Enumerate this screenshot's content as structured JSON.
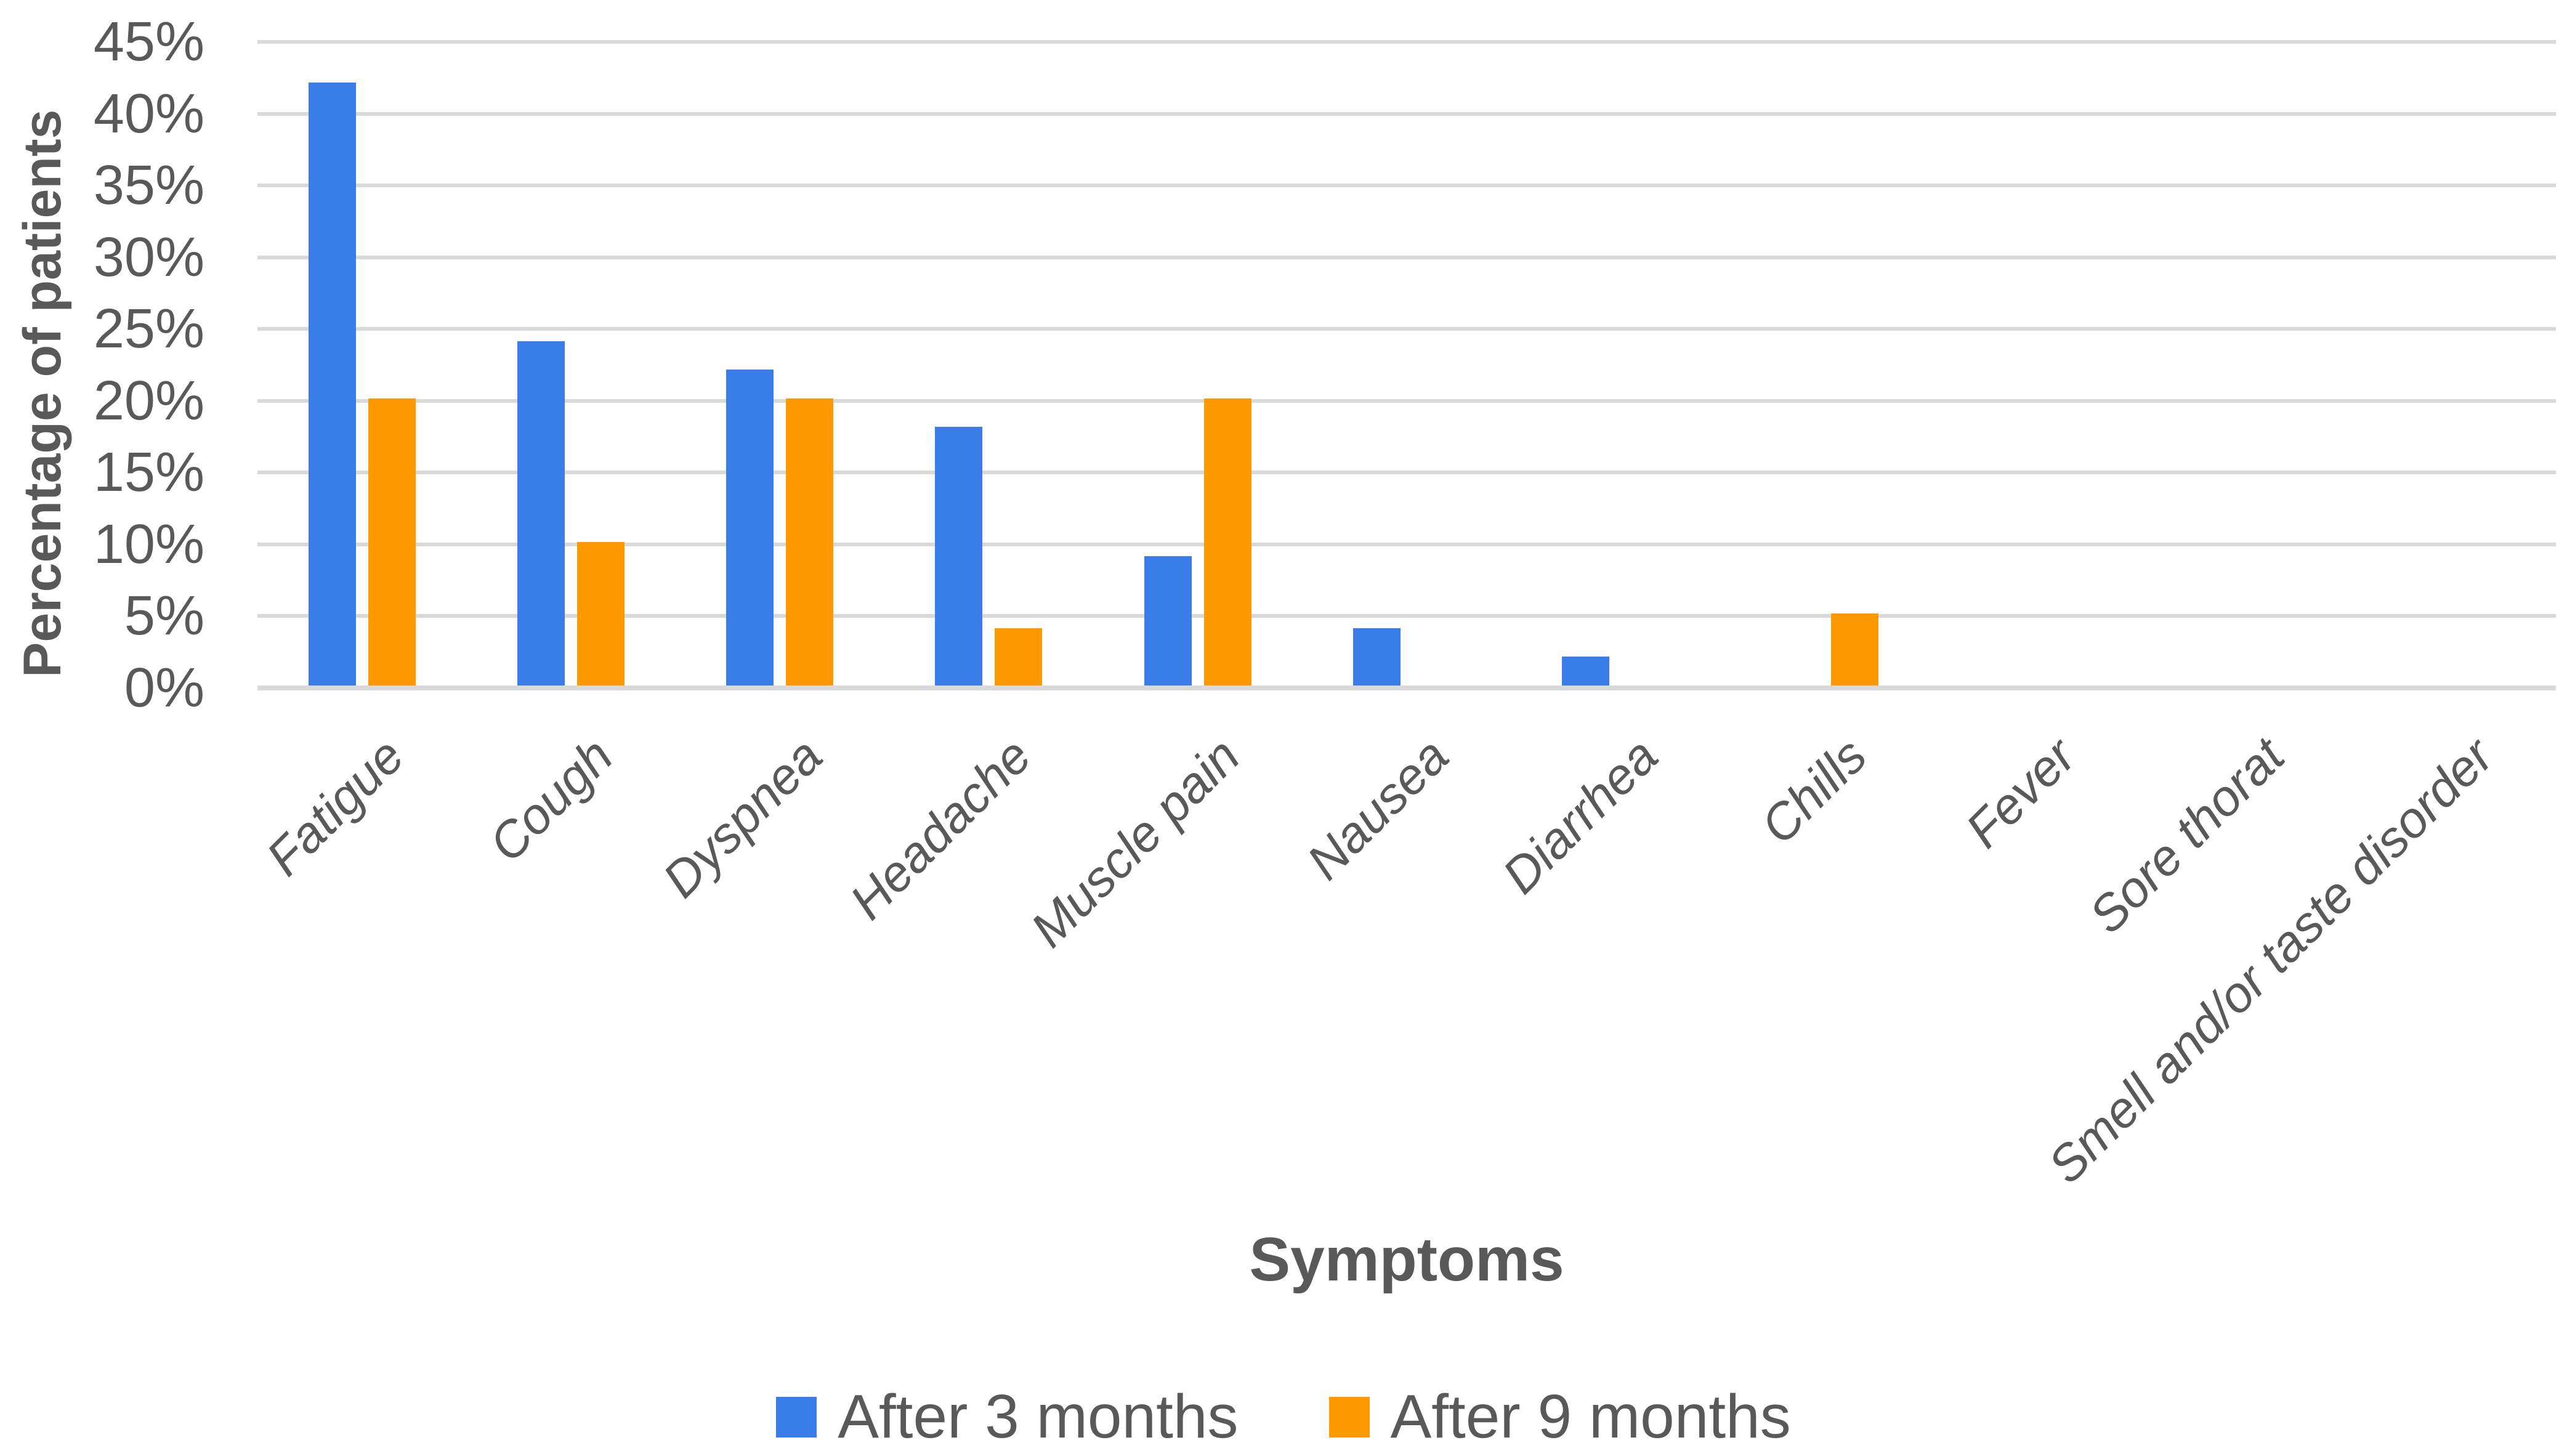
{
  "chart_data": {
    "type": "bar",
    "title": "",
    "xlabel": "Symptoms",
    "ylabel": "Percentage of patients",
    "categories": [
      "Fatigue",
      "Cough",
      "Dyspnea",
      "Headache",
      "Muscle pain",
      "Nausea",
      "Diarrhea",
      "Chills",
      "Fever",
      "Sore thorat",
      "Smell and/or taste disorder"
    ],
    "series": [
      {
        "name": "After 3 months",
        "color": "#3A7DE9",
        "values": [
          42,
          24,
          22,
          18,
          9,
          4,
          2,
          0,
          0,
          0,
          0
        ]
      },
      {
        "name": "After 9 months",
        "color": "#FF9900",
        "values": [
          20,
          10,
          20,
          4,
          20,
          0,
          0,
          5,
          0,
          0,
          0
        ]
      }
    ],
    "ylim": [
      0,
      45
    ],
    "ytick_step": 5,
    "yticks": [
      "0%",
      "5%",
      "10%",
      "15%",
      "20%",
      "25%",
      "30%",
      "35%",
      "40%",
      "45%"
    ],
    "grid": "horizontal",
    "legend_position": "bottom",
    "colors": {
      "gridline": "#D9D9D9",
      "axis_text": "#595959",
      "background": "#FFFFFF"
    }
  }
}
